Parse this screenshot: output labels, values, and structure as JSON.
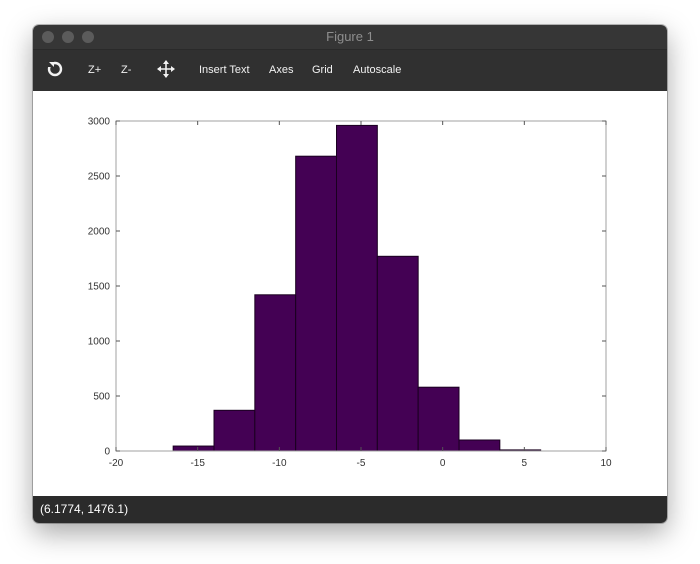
{
  "window": {
    "title": "Figure 1"
  },
  "toolbar": {
    "refresh_icon": "refresh-icon",
    "zoom_in_label": "Z+",
    "zoom_out_label": "Z-",
    "pan_icon": "pan-arrows-icon",
    "insert_text_label": "Insert Text",
    "axes_label": "Axes",
    "grid_label": "Grid",
    "autoscale_label": "Autoscale"
  },
  "status": {
    "coordinates": "(6.1774, 1476.1)"
  },
  "colors": {
    "bar_fill": "#440154",
    "bar_edge": "#1a0020"
  },
  "chart_data": {
    "type": "bar",
    "title": "",
    "xlabel": "",
    "ylabel": "",
    "xlim": [
      -20,
      10
    ],
    "ylim": [
      0,
      3000
    ],
    "xticks": [
      -20,
      -15,
      -10,
      -5,
      0,
      5,
      10
    ],
    "yticks": [
      0,
      500,
      1000,
      1500,
      2000,
      2500,
      3000
    ],
    "bins": [
      {
        "x0": -16.5,
        "x1": -14.0,
        "count": 45
      },
      {
        "x0": -14.0,
        "x1": -11.5,
        "count": 370
      },
      {
        "x0": -11.5,
        "x1": -9.0,
        "count": 1420
      },
      {
        "x0": -9.0,
        "x1": -6.5,
        "count": 2680
      },
      {
        "x0": -6.5,
        "x1": -4.0,
        "count": 2960
      },
      {
        "x0": -4.0,
        "x1": -1.5,
        "count": 1770
      },
      {
        "x0": -1.5,
        "x1": 1.0,
        "count": 580
      },
      {
        "x0": 1.0,
        "x1": 3.5,
        "count": 100
      },
      {
        "x0": 3.5,
        "x1": 6.0,
        "count": 10
      }
    ]
  }
}
